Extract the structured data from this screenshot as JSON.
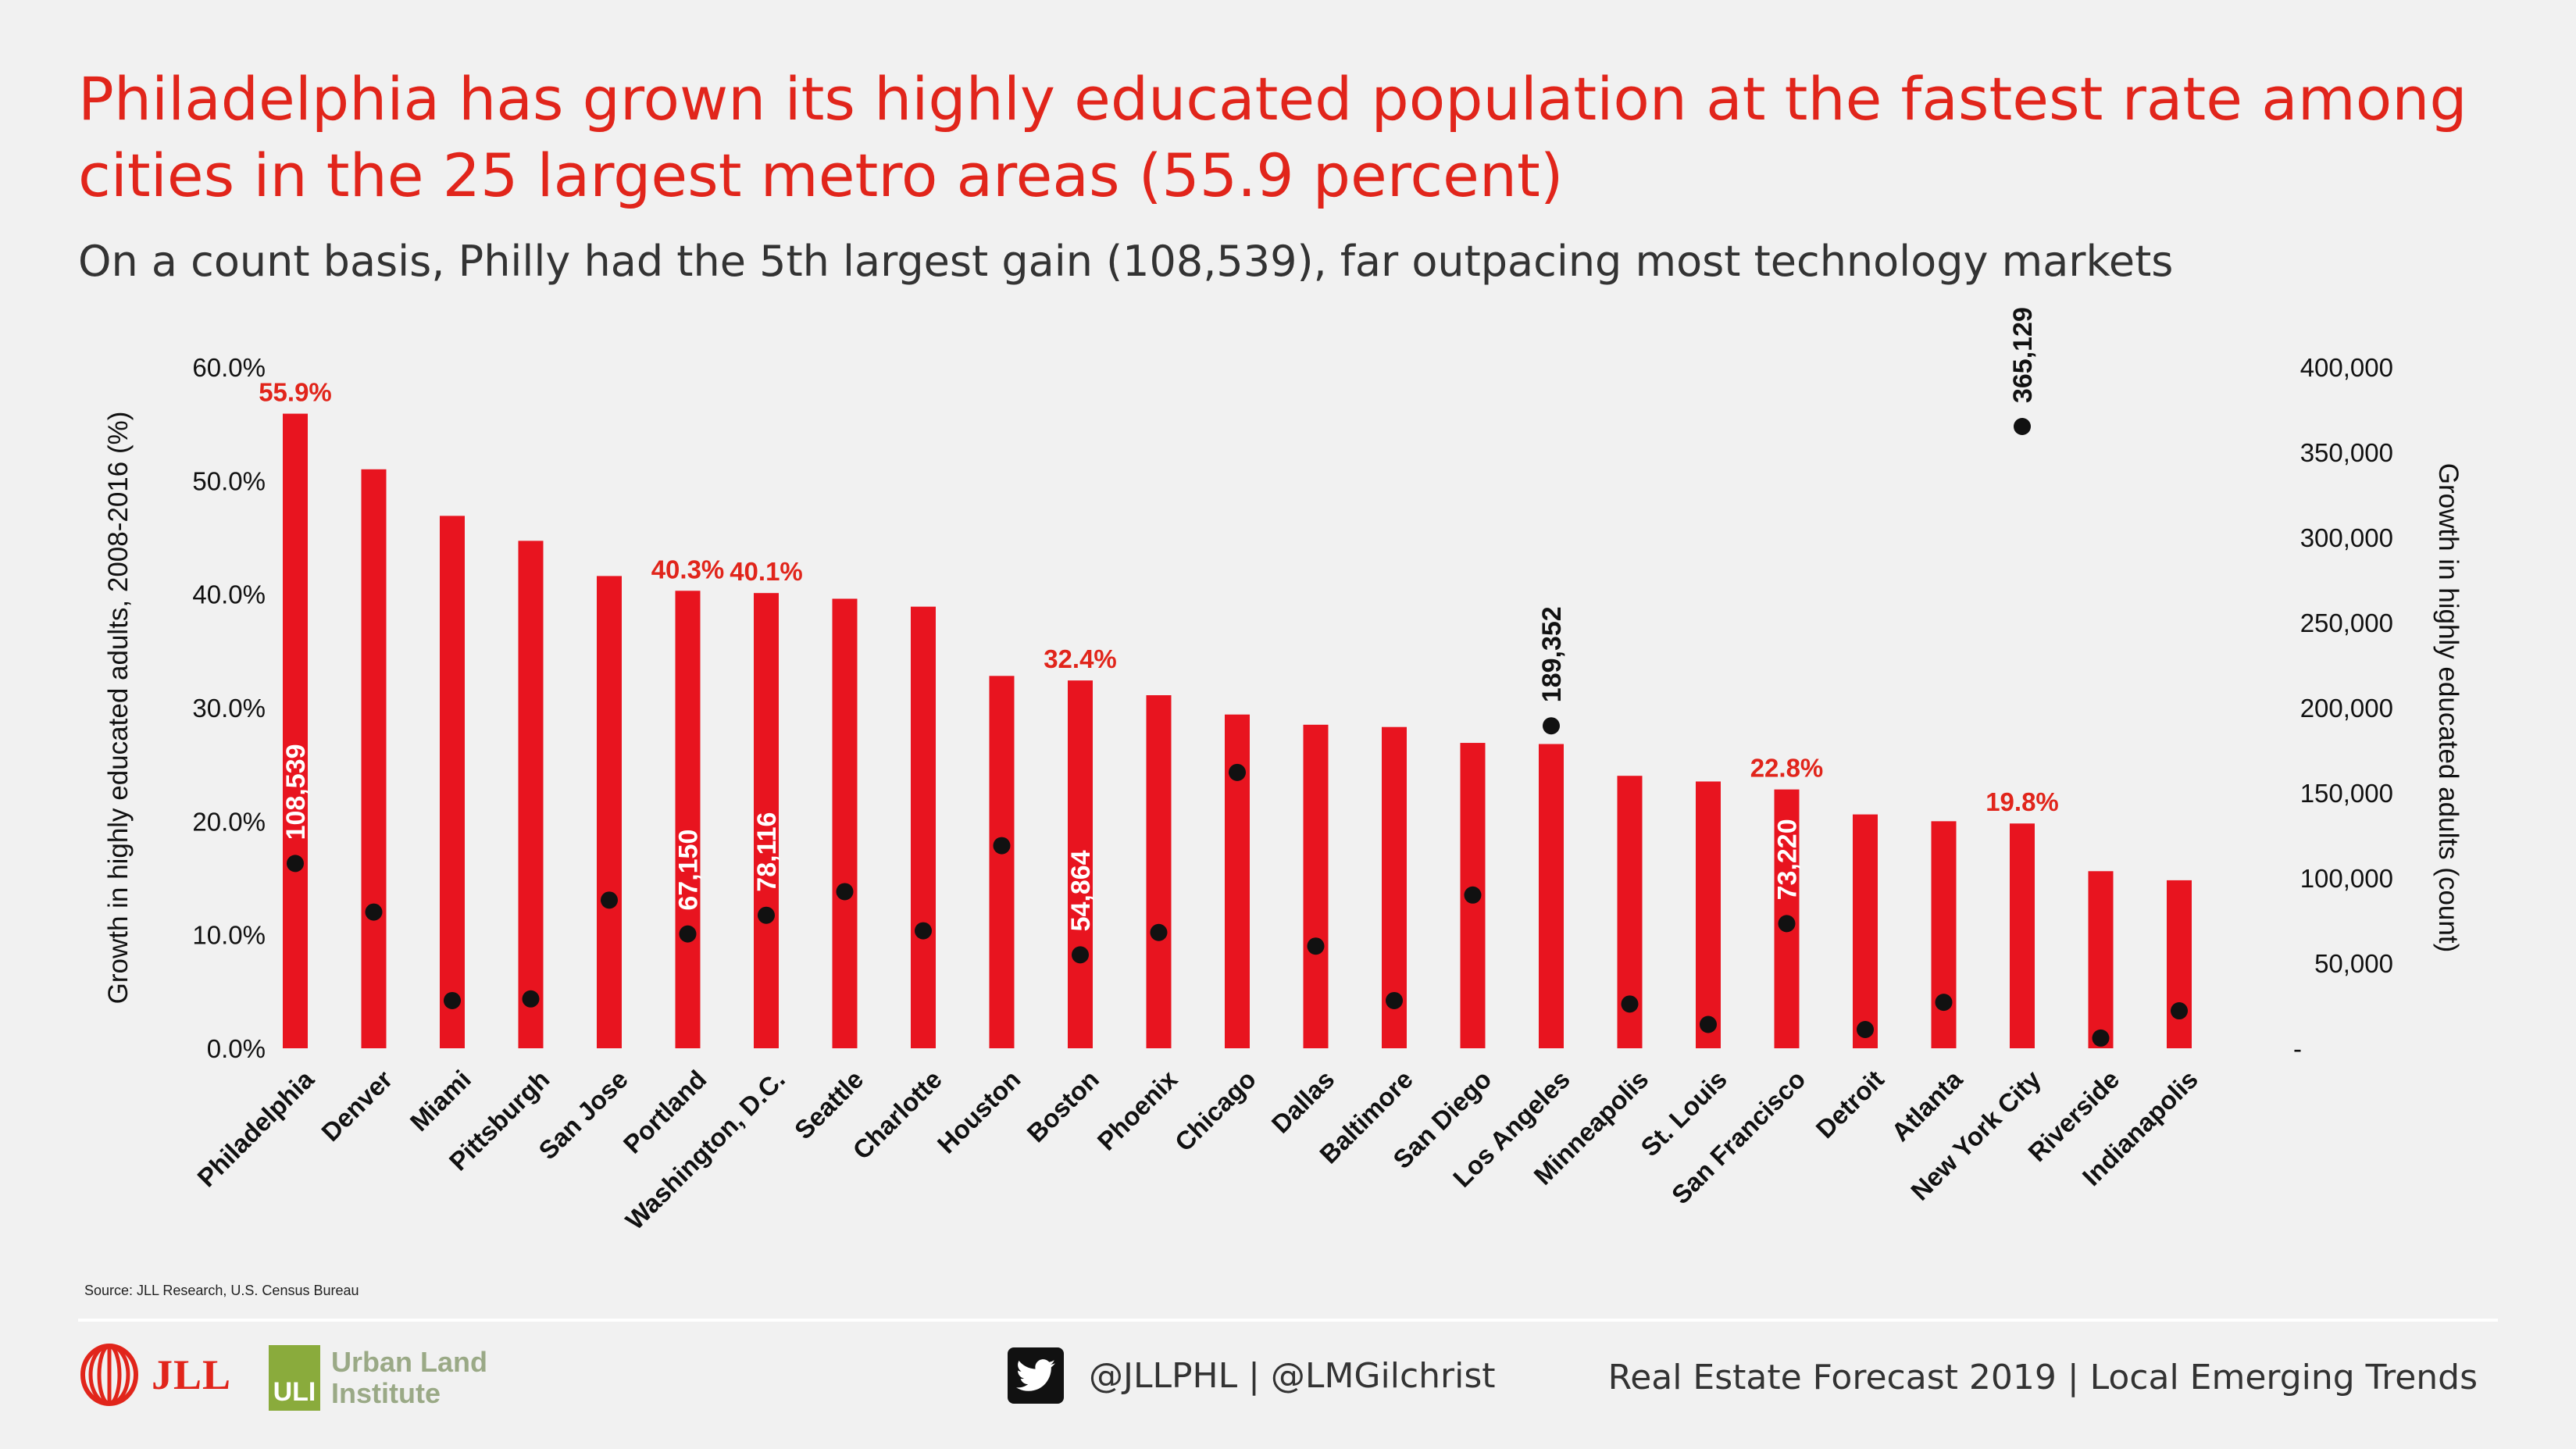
{
  "header": {
    "title": "Philadelphia has grown its highly educated population at the fastest rate among cities in the 25 largest metro areas (55.9 percent)",
    "subtitle": "On a count basis, Philly had the 5th largest gain (108,539), far outpacing most technology markets"
  },
  "chart_data": {
    "type": "bar",
    "categories": [
      "Philadelphia",
      "Denver",
      "Miami",
      "Pittsburgh",
      "San Jose",
      "Portland",
      "Washington, D.C.",
      "Seattle",
      "Charlotte",
      "Houston",
      "Boston",
      "Phoenix",
      "Chicago",
      "Dallas",
      "Baltimore",
      "San Diego",
      "Los Angeles",
      "Minneapolis",
      "St. Louis",
      "San Francisco",
      "Detroit",
      "Atlanta",
      "New York City",
      "Riverside",
      "Indianapolis"
    ],
    "series": [
      {
        "axis": "left",
        "mark": "bar",
        "values": [
          55.9,
          51.0,
          46.9,
          44.7,
          41.6,
          40.3,
          40.1,
          39.6,
          38.9,
          32.8,
          32.4,
          31.1,
          29.4,
          28.5,
          28.3,
          26.9,
          26.8,
          24.0,
          23.5,
          22.8,
          20.6,
          20.0,
          19.8,
          15.6,
          14.8
        ],
        "labels": [
          "55.9%",
          "",
          "",
          "",
          "",
          "40.3%",
          "40.1%",
          "",
          "",
          "",
          "32.4%",
          "",
          "",
          "",
          "",
          "",
          "",
          "",
          "",
          "22.8%",
          "",
          "",
          "19.8%",
          "",
          ""
        ]
      },
      {
        "axis": "right",
        "mark": "dot",
        "values": [
          108539,
          80000,
          28000,
          29000,
          87000,
          67150,
          78116,
          92000,
          69000,
          119000,
          54864,
          68000,
          162000,
          60000,
          28000,
          90000,
          189352,
          26000,
          14000,
          73220,
          11000,
          27000,
          365129,
          6000,
          22000
        ],
        "labels": [
          "108,539",
          "",
          "",
          "",
          "",
          "67,150",
          "78,116",
          "",
          "",
          "",
          "54,864",
          "",
          "",
          "",
          "",
          "",
          "189,352",
          "",
          "",
          "73,220",
          "",
          "",
          "365,129",
          "",
          ""
        ]
      }
    ],
    "y_left": {
      "label": "Growth in highly educated adults, 2008-2016 (%)",
      "range": [
        0,
        60
      ],
      "ticks": [
        "0.0%",
        "10.0%",
        "20.0%",
        "30.0%",
        "40.0%",
        "50.0%",
        "60.0%"
      ]
    },
    "y_right": {
      "label": "Growth in highly educated adults (count)",
      "range": [
        0,
        400000
      ],
      "ticks": [
        "-",
        "50,000",
        "100,000",
        "150,000",
        "200,000",
        "250,000",
        "300,000",
        "350,000",
        "400,000"
      ]
    },
    "colors": {
      "bar": "#e8141f",
      "bar_label": "#e1251b",
      "dot": "#111111",
      "dot_label_inside": "#ffffff",
      "dot_label_outside": "#111111"
    },
    "grid": false,
    "legend": "none"
  },
  "footer": {
    "source": "Source: JLL Research, U.S. Census Bureau",
    "jll_logo": "JLL",
    "uli_logo_box": "ULI",
    "uli_logo_text": [
      "Urban Land",
      "Institute"
    ],
    "social_icon": "twitter-icon",
    "handles": "@JLLPHL | @LMGilchrist",
    "event": "Real Estate Forecast 2019  |  Local Emerging Trends"
  }
}
